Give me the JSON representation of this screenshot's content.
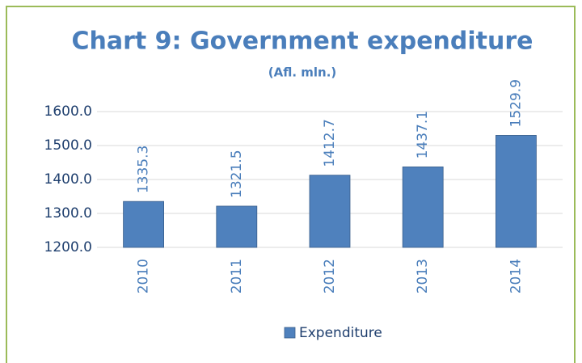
{
  "chart_data": {
    "type": "bar",
    "title": "Chart 9: Government expenditure",
    "subtitle": "(Afl. mln.)",
    "categories": [
      "2010",
      "2011",
      "2012",
      "2013",
      "2014"
    ],
    "series": [
      {
        "name": "Expenditure",
        "color": "#4f81bd",
        "values": [
          1335.3,
          1321.5,
          1412.7,
          1437.1,
          1529.9
        ]
      }
    ],
    "ylim": [
      1200,
      1600
    ],
    "yticks": [
      {
        "value": 1200,
        "label": "1200.0"
      },
      {
        "value": 1300,
        "label": "1300.0"
      },
      {
        "value": 1400,
        "label": "1400.0"
      },
      {
        "value": 1500,
        "label": "1500.0"
      },
      {
        "value": 1600,
        "label": "1600.0"
      }
    ],
    "grid": true,
    "legend": "bottom"
  }
}
